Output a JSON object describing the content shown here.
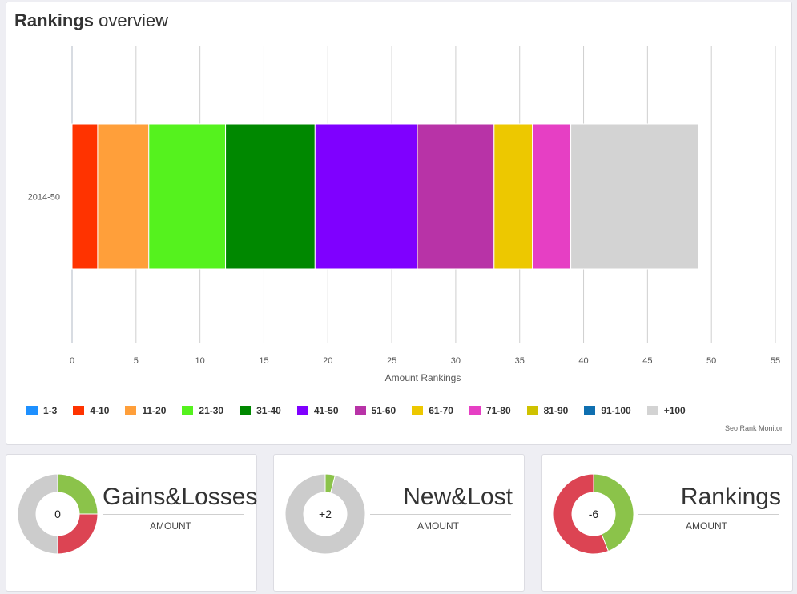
{
  "main": {
    "title_bold": "Rankings",
    "title_rest": "overview",
    "credit": "Seo Rank Monitor"
  },
  "chart_data": {
    "type": "bar",
    "orientation": "horizontal",
    "stacked": true,
    "categories": [
      "2014-50"
    ],
    "series": [
      {
        "name": "1-3",
        "color": "#1e90ff",
        "values": [
          0
        ]
      },
      {
        "name": "4-10",
        "color": "#ff3300",
        "values": [
          2
        ]
      },
      {
        "name": "11-20",
        "color": "#ff9f3a",
        "values": [
          4
        ]
      },
      {
        "name": "21-30",
        "color": "#55f21e",
        "values": [
          6
        ]
      },
      {
        "name": "31-40",
        "color": "#008800",
        "values": [
          7
        ]
      },
      {
        "name": "41-50",
        "color": "#7f00ff",
        "values": [
          8
        ]
      },
      {
        "name": "51-60",
        "color": "#b833a7",
        "values": [
          6
        ]
      },
      {
        "name": "61-70",
        "color": "#edc800",
        "values": [
          3
        ]
      },
      {
        "name": "71-80",
        "color": "#e63fc4",
        "values": [
          3
        ]
      },
      {
        "name": "81-90",
        "color": "#cfc200",
        "values": [
          0
        ]
      },
      {
        "name": "91-100",
        "color": "#0f6fb0",
        "values": [
          0
        ]
      },
      {
        "name": "+100",
        "color": "#d3d3d3",
        "values": [
          10
        ]
      }
    ],
    "xlabel": "Amount Rankings",
    "xlim": [
      0,
      55
    ],
    "xticks": [
      0,
      5,
      10,
      15,
      20,
      25,
      30,
      35,
      40,
      45,
      50,
      55
    ],
    "grid": true,
    "legend_position": "bottom"
  },
  "cards": [
    {
      "title": "Gains&Losses",
      "sub": "AMOUNT",
      "value": "0",
      "segments": [
        {
          "value": 25,
          "color": "#8bc34a"
        },
        {
          "value": 25,
          "color": "#dc4453"
        },
        {
          "value": 50,
          "color": "#cccccc"
        }
      ]
    },
    {
      "title": "New&Lost",
      "sub": "AMOUNT",
      "value": "+2",
      "segments": [
        {
          "value": 4,
          "color": "#8bc34a"
        },
        {
          "value": 96,
          "color": "#cccccc"
        }
      ]
    },
    {
      "title": "Rankings",
      "sub": "AMOUNT",
      "value": "-6",
      "segments": [
        {
          "value": 44,
          "color": "#8bc34a"
        },
        {
          "value": 56,
          "color": "#dc4453"
        }
      ]
    }
  ]
}
